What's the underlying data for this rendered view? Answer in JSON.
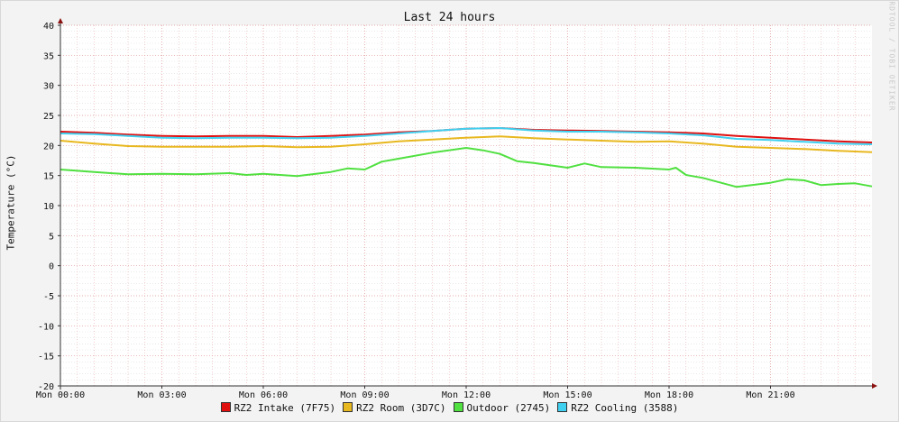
{
  "chart_data": {
    "type": "line",
    "title": "Last 24 hours",
    "ylabel": "Temperature (°C)",
    "xlabel": "",
    "watermark": "RRDTOOL / TOBI OETIKER",
    "ylim": [
      -20,
      40
    ],
    "y_ticks": [
      40,
      35,
      30,
      25,
      20,
      15,
      10,
      5,
      0,
      -5,
      -10,
      -15,
      -20
    ],
    "x_range_hours": [
      0,
      24
    ],
    "x_ticks": [
      {
        "hour": 0,
        "label": "Mon 00:00"
      },
      {
        "hour": 3,
        "label": "Mon 03:00"
      },
      {
        "hour": 6,
        "label": "Mon 06:00"
      },
      {
        "hour": 9,
        "label": "Mon 09:00"
      },
      {
        "hour": 12,
        "label": "Mon 12:00"
      },
      {
        "hour": 15,
        "label": "Mon 15:00"
      },
      {
        "hour": 18,
        "label": "Mon 18:00"
      },
      {
        "hour": 21,
        "label": "Mon 21:00"
      }
    ],
    "grid": true,
    "legend_position": "bottom",
    "series": [
      {
        "name": "RZ2 Intake (7F75)",
        "color": "#e01010",
        "x": [
          0,
          1,
          2,
          3,
          4,
          5,
          6,
          7,
          8,
          9,
          10,
          11,
          12,
          13,
          14,
          15,
          16,
          17,
          18,
          19,
          20,
          21,
          22,
          23,
          24
        ],
        "values": [
          22.3,
          22.1,
          21.8,
          21.6,
          21.5,
          21.6,
          21.6,
          21.4,
          21.6,
          21.8,
          22.2,
          22.4,
          22.8,
          22.9,
          22.6,
          22.5,
          22.4,
          22.3,
          22.2,
          22.0,
          21.6,
          21.3,
          21.0,
          20.7,
          20.5
        ]
      },
      {
        "name": "RZ2 Room (3D7C)",
        "color": "#e8b820",
        "x": [
          0,
          1,
          2,
          3,
          4,
          5,
          6,
          7,
          8,
          9,
          10,
          11,
          12,
          13,
          14,
          15,
          16,
          17,
          18,
          19,
          20,
          21,
          22,
          23,
          24
        ],
        "values": [
          20.8,
          20.3,
          19.9,
          19.8,
          19.8,
          19.8,
          19.9,
          19.7,
          19.8,
          20.2,
          20.7,
          21.0,
          21.3,
          21.5,
          21.2,
          21.0,
          20.8,
          20.6,
          20.7,
          20.3,
          19.8,
          19.6,
          19.4,
          19.1,
          18.9
        ]
      },
      {
        "name": "Outdoor (2745)",
        "color": "#50e040",
        "x": [
          0,
          1,
          2,
          3,
          4,
          5,
          5.5,
          6,
          7,
          8,
          8.5,
          9,
          9.5,
          10,
          11,
          12,
          12.5,
          13,
          13.5,
          14,
          15,
          15.5,
          16,
          17,
          18,
          18.2,
          18.5,
          19,
          20,
          21,
          21.5,
          22,
          22.5,
          23,
          23.5,
          24
        ],
        "values": [
          16.0,
          15.6,
          15.2,
          15.3,
          15.2,
          15.4,
          15.1,
          15.3,
          14.9,
          15.6,
          16.2,
          16.0,
          17.3,
          17.8,
          18.8,
          19.6,
          19.2,
          18.6,
          17.4,
          17.1,
          16.3,
          17.0,
          16.4,
          16.3,
          16.0,
          16.3,
          15.1,
          14.6,
          13.1,
          13.8,
          14.4,
          14.2,
          13.4,
          13.6,
          13.7,
          13.2
        ]
      },
      {
        "name": "RZ2 Cooling (3588)",
        "color": "#40d0f0",
        "x": [
          0,
          1,
          2,
          3,
          4,
          5,
          6,
          7,
          8,
          9,
          10,
          11,
          12,
          13,
          14,
          15,
          16,
          17,
          18,
          19,
          20,
          21,
          22,
          23,
          24
        ],
        "values": [
          22.0,
          21.9,
          21.6,
          21.3,
          21.2,
          21.3,
          21.3,
          21.2,
          21.3,
          21.6,
          22.0,
          22.4,
          22.8,
          22.9,
          22.5,
          22.3,
          22.3,
          22.2,
          22.0,
          21.7,
          21.1,
          20.9,
          20.6,
          20.3,
          20.2
        ]
      }
    ]
  }
}
